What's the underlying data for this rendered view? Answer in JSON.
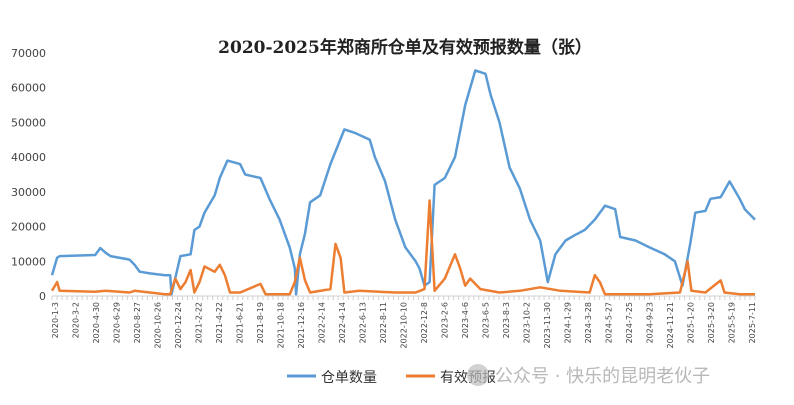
{
  "chart_data": {
    "type": "line",
    "title": "2020-2025年郑商所仓单及有效预报数量（张）",
    "xlabel": "",
    "ylabel": "",
    "ylim": [
      0,
      70000
    ],
    "yticks": [
      0,
      10000,
      20000,
      30000,
      40000,
      50000,
      60000,
      70000
    ],
    "xlim_years": [
      2020.0,
      2025.53
    ],
    "grid": false,
    "legend_position": "bottom",
    "xtick_labels": [
      "2020-1-3",
      "2020-3-2",
      "2020-4-30",
      "2020-6-29",
      "2020-8-27",
      "2020-10-26",
      "2020-12-24",
      "2021-2-22",
      "2021-4-22",
      "2021-6-21",
      "2021-8-19",
      "2021-10-18",
      "2021-12-16",
      "2022-2-14",
      "2022-4-14",
      "2022-6-13",
      "2022-8-11",
      "2022-10-10",
      "2022-12-8",
      "2023-2-6",
      "2023-4-6",
      "2023-6-5",
      "2023-8-3",
      "2023-10-2",
      "2023-11-30",
      "2024-1-29",
      "2024-3-28",
      "2024-5-27",
      "2024-7-25",
      "2024-9-23",
      "2024-11-21",
      "2025-1-20",
      "2025-3-20",
      "2025-5-19",
      "2025-7-11"
    ],
    "series": [
      {
        "name": "仓单数量",
        "color": "#5B9BD5",
        "x": [
          2020.0,
          2020.04,
          2020.06,
          2020.34,
          2020.38,
          2020.42,
          2020.46,
          2020.61,
          2020.65,
          2020.69,
          2020.77,
          2020.89,
          2020.93,
          2020.94,
          2021.01,
          2021.09,
          2021.12,
          2021.16,
          2021.2,
          2021.28,
          2021.32,
          2021.38,
          2021.48,
          2021.52,
          2021.64,
          2021.71,
          2021.79,
          2021.87,
          2021.91,
          2021.92,
          2021.95,
          2021.99,
          2022.03,
          2022.11,
          2022.19,
          2022.3,
          2022.38,
          2022.5,
          2022.54,
          2022.62,
          2022.7,
          2022.78,
          2022.86,
          2022.89,
          2022.93,
          2022.97,
          2023.01,
          2023.09,
          2023.17,
          2023.25,
          2023.33,
          2023.41,
          2023.45,
          2023.52,
          2023.6,
          2023.68,
          2023.76,
          2023.84,
          2023.9,
          2023.96,
          2024.04,
          2024.11,
          2024.19,
          2024.27,
          2024.35,
          2024.43,
          2024.47,
          2024.59,
          2024.7,
          2024.82,
          2024.9,
          2024.96,
          2025.02,
          2025.06,
          2025.14,
          2025.18,
          2025.26,
          2025.33,
          2025.41,
          2025.45,
          2025.53
        ],
        "values": [
          6000,
          11000,
          11500,
          11800,
          13800,
          12500,
          11500,
          10500,
          9000,
          7000,
          6500,
          6000,
          6000,
          500,
          11500,
          12000,
          19000,
          20000,
          24000,
          29000,
          34000,
          39000,
          38000,
          35000,
          34000,
          28000,
          22000,
          14000,
          8000,
          500,
          12000,
          18000,
          27000,
          29000,
          38000,
          48000,
          47000,
          45000,
          40000,
          33000,
          22000,
          14000,
          10000,
          8000,
          3000,
          4000,
          32000,
          34000,
          40000,
          55000,
          65000,
          64000,
          58000,
          50000,
          37000,
          31000,
          22000,
          16000,
          4000,
          12000,
          16000,
          17500,
          19000,
          22000,
          26000,
          25000,
          17000,
          16000,
          14000,
          12000,
          10000,
          3000,
          15000,
          24000,
          24500,
          28000,
          28500,
          33000,
          28000,
          25000,
          22000
        ]
      },
      {
        "name": "有效预报",
        "color": "#ED7D31",
        "x": [
          2020.0,
          2020.04,
          2020.06,
          2020.34,
          2020.42,
          2020.61,
          2020.65,
          2020.89,
          2020.93,
          2020.97,
          2021.01,
          2021.05,
          2021.09,
          2021.12,
          2021.16,
          2021.2,
          2021.28,
          2021.32,
          2021.36,
          2021.4,
          2021.48,
          2021.64,
          2021.68,
          2021.87,
          2021.91,
          2021.95,
          2021.99,
          2022.03,
          2022.19,
          2022.23,
          2022.27,
          2022.3,
          2022.42,
          2022.7,
          2022.86,
          2022.93,
          2022.97,
          2023.01,
          2023.09,
          2023.17,
          2023.21,
          2023.25,
          2023.29,
          2023.37,
          2023.52,
          2023.68,
          2023.84,
          2024.0,
          2024.23,
          2024.27,
          2024.31,
          2024.35,
          2024.7,
          2024.94,
          2025.0,
          2025.03,
          2025.14,
          2025.26,
          2025.29,
          2025.41,
          2025.53
        ],
        "values": [
          1500,
          4000,
          1500,
          1200,
          1500,
          1000,
          1500,
          500,
          500,
          5000,
          2000,
          4000,
          7500,
          1000,
          4000,
          8500,
          7000,
          9000,
          6000,
          1000,
          1000,
          3500,
          500,
          500,
          4000,
          11000,
          4500,
          1000,
          2000,
          15000,
          11000,
          1000,
          1500,
          1000,
          1000,
          2000,
          27500,
          1500,
          5000,
          12000,
          8000,
          3000,
          5000,
          2000,
          1000,
          1500,
          2500,
          1500,
          1000,
          6000,
          4000,
          500,
          500,
          1000,
          10000,
          1500,
          1000,
          4500,
          1000,
          500,
          500
        ]
      }
    ]
  },
  "watermark": "公众号 · 快乐的昆明老伙子"
}
